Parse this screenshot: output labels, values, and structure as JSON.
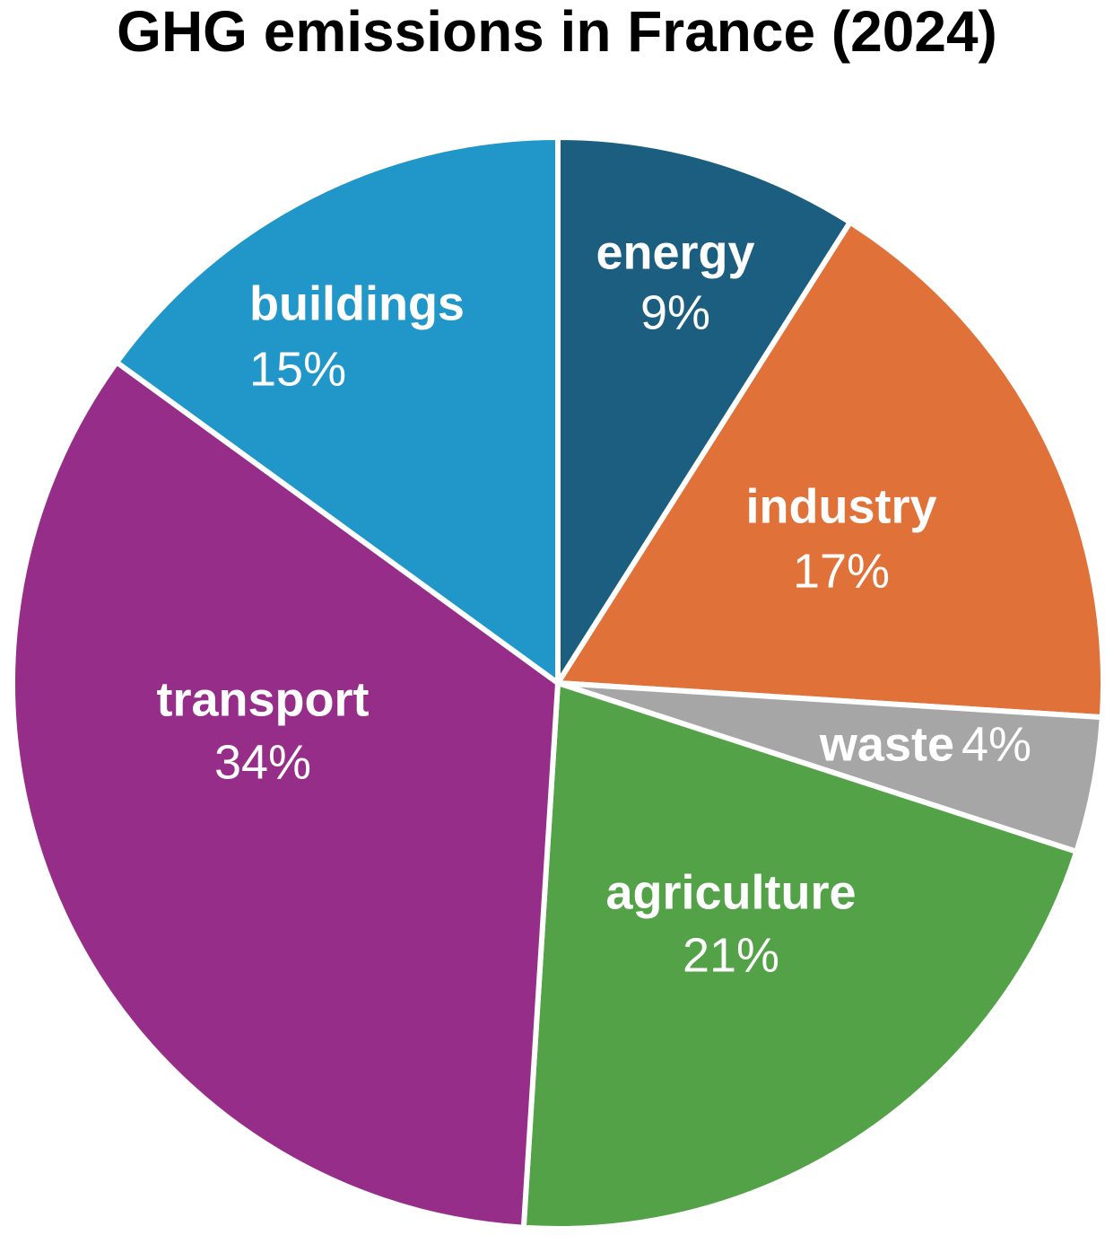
{
  "chart_data": {
    "type": "pie",
    "title": "GHG emissions in France (2024)",
    "categories": [
      "energy",
      "industry",
      "waste",
      "agriculture",
      "transport",
      "buildings"
    ],
    "values": [
      9,
      17,
      4,
      21,
      34,
      15
    ],
    "value_labels": [
      "9%",
      "17%",
      "4%",
      "21%",
      "34%",
      "15%"
    ],
    "colors": [
      "#1b5e80",
      "#e07139",
      "#a6a6a6",
      "#54a247",
      "#962d89",
      "#2196c9"
    ]
  }
}
